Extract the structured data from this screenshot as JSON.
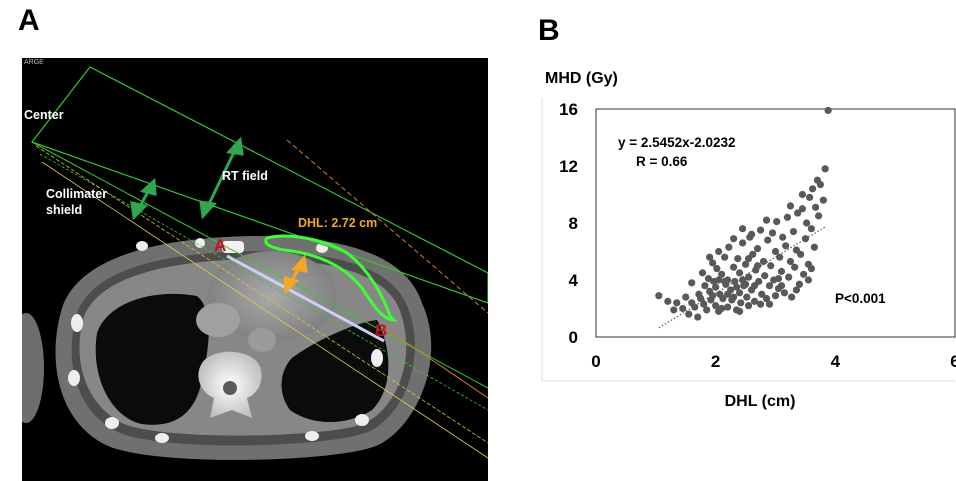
{
  "panel_a": {
    "letter": "A",
    "corner_text": "ARGE",
    "labels": {
      "center": "Center",
      "rt_field": "RT field",
      "collimater": "Collimater",
      "shield": "shield",
      "dhl": "DHL: 2.72 cm",
      "point_a": "A",
      "point_b": "B"
    },
    "colors": {
      "field_line": "#32c832",
      "contour": "#3cff32",
      "dhl_arrow": "#f5a623",
      "point_label": "#c0141e",
      "ab_line": "#c8d2f0"
    }
  },
  "panel_b": {
    "letter": "B",
    "equation": "y = 2.5452x-2.0232",
    "r_value": "R = 0.66",
    "p_value": "P<0.001",
    "marker_color": "#595959"
  },
  "chart_data": {
    "type": "scatter",
    "xlabel": "DHL (cm)",
    "ylabel": "MHD (Gy)",
    "xlim": [
      0,
      6
    ],
    "ylim": [
      0,
      16
    ],
    "xticks": [
      "0",
      "2",
      "4",
      "6"
    ],
    "yticks": [
      "0",
      "4",
      "8",
      "12",
      "16"
    ],
    "trendline": {
      "slope": 2.5452,
      "intercept": -2.0232,
      "x_range": [
        1.05,
        3.85
      ],
      "style": "dotted"
    },
    "points": [
      [
        1.05,
        2.9
      ],
      [
        1.2,
        2.5
      ],
      [
        1.3,
        1.9
      ],
      [
        1.35,
        2.4
      ],
      [
        1.45,
        2.0
      ],
      [
        1.5,
        2.8
      ],
      [
        1.55,
        1.6
      ],
      [
        1.6,
        2.4
      ],
      [
        1.65,
        2.1
      ],
      [
        1.7,
        1.4
      ],
      [
        1.72,
        3.0
      ],
      [
        1.75,
        2.7
      ],
      [
        1.78,
        4.5
      ],
      [
        1.8,
        2.3
      ],
      [
        1.82,
        3.6
      ],
      [
        1.85,
        1.9
      ],
      [
        1.88,
        4.1
      ],
      [
        1.9,
        3.2
      ],
      [
        1.92,
        2.6
      ],
      [
        1.95,
        5.2
      ],
      [
        1.97,
        3.9
      ],
      [
        2.0,
        2.2
      ],
      [
        2.0,
        3.5
      ],
      [
        2.02,
        4.8
      ],
      [
        2.05,
        1.8
      ],
      [
        2.07,
        3.0
      ],
      [
        2.1,
        4.4
      ],
      [
        2.12,
        2.7
      ],
      [
        2.15,
        5.6
      ],
      [
        2.17,
        3.7
      ],
      [
        2.2,
        2.1
      ],
      [
        2.2,
        4.0
      ],
      [
        2.22,
        6.3
      ],
      [
        2.25,
        3.3
      ],
      [
        2.27,
        2.6
      ],
      [
        2.3,
        4.9
      ],
      [
        2.32,
        3.9
      ],
      [
        2.35,
        1.9
      ],
      [
        2.37,
        5.5
      ],
      [
        2.4,
        3.1
      ],
      [
        2.4,
        4.5
      ],
      [
        2.42,
        2.4
      ],
      [
        2.45,
        6.6
      ],
      [
        2.47,
        3.6
      ],
      [
        2.5,
        5.1
      ],
      [
        2.52,
        2.8
      ],
      [
        2.55,
        4.2
      ],
      [
        2.57,
        7.0
      ],
      [
        2.6,
        3.3
      ],
      [
        2.62,
        5.8
      ],
      [
        2.65,
        2.5
      ],
      [
        2.67,
        4.7
      ],
      [
        2.7,
        6.2
      ],
      [
        2.72,
        3.9
      ],
      [
        2.75,
        7.5
      ],
      [
        2.77,
        3.0
      ],
      [
        2.8,
        5.3
      ],
      [
        2.82,
        4.3
      ],
      [
        2.85,
        2.7
      ],
      [
        2.87,
        6.8
      ],
      [
        2.9,
        3.6
      ],
      [
        2.92,
        5.0
      ],
      [
        2.95,
        7.3
      ],
      [
        2.97,
        4.0
      ],
      [
        3.0,
        2.9
      ],
      [
        3.0,
        6.0
      ],
      [
        3.02,
        8.1
      ],
      [
        3.05,
        3.4
      ],
      [
        3.07,
        5.6
      ],
      [
        3.1,
        4.6
      ],
      [
        3.12,
        7.0
      ],
      [
        3.15,
        3.1
      ],
      [
        3.17,
        6.4
      ],
      [
        3.2,
        8.4
      ],
      [
        3.22,
        4.2
      ],
      [
        3.25,
        5.3
      ],
      [
        3.27,
        2.8
      ],
      [
        3.3,
        7.4
      ],
      [
        3.32,
        4.9
      ],
      [
        3.35,
        6.1
      ],
      [
        3.37,
        8.7
      ],
      [
        3.4,
        3.7
      ],
      [
        3.42,
        5.8
      ],
      [
        3.45,
        9.0
      ],
      [
        3.47,
        4.4
      ],
      [
        3.5,
        6.9
      ],
      [
        3.52,
        8.0
      ],
      [
        3.55,
        5.1
      ],
      [
        3.57,
        9.8
      ],
      [
        3.6,
        7.6
      ],
      [
        3.62,
        10.4
      ],
      [
        3.65,
        6.3
      ],
      [
        3.67,
        9.1
      ],
      [
        3.7,
        11.0
      ],
      [
        3.72,
        8.5
      ],
      [
        3.75,
        10.7
      ],
      [
        3.8,
        9.6
      ],
      [
        3.83,
        11.8
      ],
      [
        3.88,
        15.9
      ],
      [
        1.6,
        3.8
      ],
      [
        1.9,
        5.6
      ],
      [
        2.05,
        6.0
      ],
      [
        2.3,
        6.9
      ],
      [
        2.45,
        7.6
      ],
      [
        2.6,
        7.2
      ],
      [
        2.85,
        8.2
      ],
      [
        3.05,
        4.1
      ],
      [
        3.25,
        9.2
      ],
      [
        3.45,
        10.0
      ],
      [
        2.1,
        2.0
      ],
      [
        2.2,
        3.0
      ],
      [
        2.3,
        2.8
      ],
      [
        2.4,
        1.8
      ],
      [
        2.5,
        3.7
      ],
      [
        2.55,
        2.2
      ],
      [
        2.65,
        3.6
      ],
      [
        2.75,
        2.3
      ],
      [
        2.9,
        2.3
      ],
      [
        3.1,
        3.6
      ],
      [
        3.35,
        3.3
      ],
      [
        3.55,
        4.0
      ],
      [
        3.6,
        4.8
      ],
      [
        1.95,
        2.9
      ],
      [
        2.05,
        4.0
      ],
      [
        2.15,
        3.9
      ],
      [
        2.35,
        3.5
      ],
      [
        2.45,
        4.0
      ],
      [
        2.55,
        5.5
      ],
      [
        2.7,
        5.0
      ]
    ]
  }
}
